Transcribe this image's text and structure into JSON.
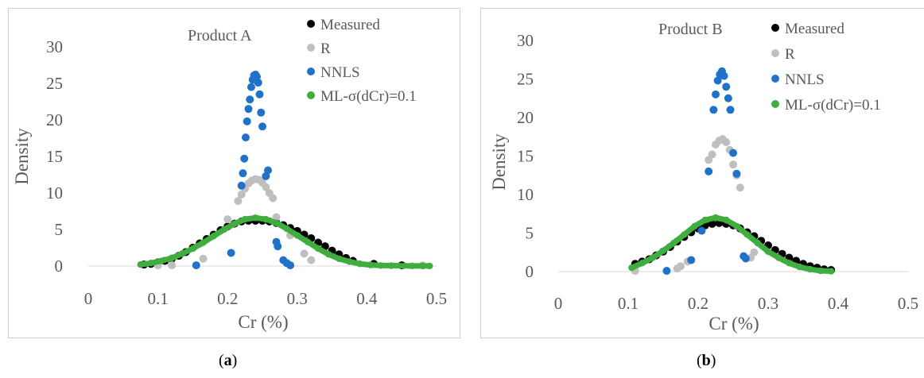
{
  "colors": {
    "measured": "#000000",
    "r": "#bfbfbf",
    "nnls": "#1f72c8",
    "ml": "#3fae3f",
    "axis_text": "#595959",
    "axis_line": "#d9d9d9",
    "panel_border": "#d0d0d0"
  },
  "captions": {
    "a_open": "(",
    "a_letter": "a",
    "a_close": ")",
    "b_open": "(",
    "b_letter": "b",
    "b_close": ")"
  },
  "chart_data": [
    {
      "type": "scatter",
      "title": "Product A",
      "xlabel": "Cr (%)",
      "ylabel": "Density",
      "xlim": [
        0,
        0.5
      ],
      "ylim": [
        0,
        30
      ],
      "x_ticks": [
        "0",
        "0.1",
        "0.2",
        "0.3",
        "0.4",
        "0.5"
      ],
      "y_ticks": [
        "0",
        "5",
        "10",
        "15",
        "20",
        "25",
        "30"
      ],
      "grid": false,
      "legend_position": "top-right",
      "legend": [
        "Measured",
        "R",
        "NNLS",
        "ML-σ(dCr)=0.1"
      ],
      "series": [
        {
          "name": "Measured",
          "color_key": "measured",
          "x": [
            0.08,
            0.09,
            0.1,
            0.11,
            0.12,
            0.13,
            0.14,
            0.15,
            0.16,
            0.17,
            0.18,
            0.19,
            0.2,
            0.21,
            0.22,
            0.23,
            0.24,
            0.25,
            0.26,
            0.27,
            0.28,
            0.29,
            0.3,
            0.31,
            0.32,
            0.33,
            0.34,
            0.35,
            0.36,
            0.37,
            0.38,
            0.41,
            0.45
          ],
          "y": [
            0.2,
            0.3,
            0.5,
            0.7,
            1.0,
            1.4,
            1.9,
            2.5,
            3.1,
            3.7,
            4.3,
            4.9,
            5.4,
            5.8,
            6.1,
            6.2,
            6.2,
            6.2,
            6.1,
            5.9,
            5.6,
            5.2,
            4.8,
            4.3,
            3.8,
            3.2,
            2.7,
            2.1,
            1.6,
            1.1,
            0.7,
            0.3,
            0.1
          ]
        },
        {
          "name": "R",
          "color_key": "r",
          "x": [
            0.1,
            0.12,
            0.165,
            0.2,
            0.215,
            0.22,
            0.225,
            0.23,
            0.235,
            0.24,
            0.245,
            0.25,
            0.255,
            0.26,
            0.265,
            0.27,
            0.29,
            0.31,
            0.32,
            0.48
          ],
          "y": [
            0.1,
            0.1,
            1.0,
            6.4,
            8.9,
            9.8,
            10.6,
            11.3,
            11.7,
            11.9,
            11.8,
            11.4,
            10.8,
            10.0,
            9.3,
            6.7,
            4.2,
            1.7,
            0.8,
            0.1
          ]
        },
        {
          "name": "NNLS",
          "color_key": "nnls",
          "x": [
            0.155,
            0.205,
            0.22,
            0.222,
            0.224,
            0.226,
            0.228,
            0.23,
            0.232,
            0.234,
            0.236,
            0.238,
            0.24,
            0.242,
            0.244,
            0.246,
            0.248,
            0.25,
            0.255,
            0.258,
            0.27,
            0.272,
            0.28,
            0.285,
            0.29
          ],
          "y": [
            0.1,
            1.8,
            11.0,
            12.7,
            14.7,
            17.6,
            19.8,
            21.5,
            22.8,
            24.5,
            25.5,
            26.1,
            26.2,
            25.9,
            25.1,
            23.5,
            21.0,
            19.1,
            12.3,
            13.1,
            3.3,
            2.7,
            0.8,
            0.4,
            0.1
          ]
        },
        {
          "name": "ML-σ(dCr)=0.1",
          "color_key": "ml",
          "x": [
            0.075,
            0.09,
            0.105,
            0.12,
            0.135,
            0.15,
            0.165,
            0.18,
            0.195,
            0.21,
            0.225,
            0.24,
            0.255,
            0.27,
            0.285,
            0.3,
            0.315,
            0.33,
            0.345,
            0.36,
            0.375,
            0.39,
            0.405,
            0.42,
            0.435,
            0.465,
            0.48,
            0.49
          ],
          "y": [
            0.2,
            0.4,
            0.7,
            1.1,
            1.7,
            2.4,
            3.2,
            4.1,
            5.0,
            5.8,
            6.4,
            6.6,
            6.4,
            5.9,
            5.1,
            4.2,
            3.3,
            2.4,
            1.6,
            1.0,
            0.6,
            0.3,
            0.15,
            0.08,
            0.05,
            0.02,
            0.01,
            0.01
          ]
        }
      ]
    },
    {
      "type": "scatter",
      "title": "Product B",
      "xlabel": "Cr (%)",
      "ylabel": "Density",
      "xlim": [
        0,
        0.5
      ],
      "ylim": [
        0,
        30
      ],
      "x_ticks": [
        "0",
        "0.1",
        "0.2",
        "0.3",
        "0.4",
        "0.5"
      ],
      "y_ticks": [
        "0",
        "5",
        "10",
        "15",
        "20",
        "25",
        "30"
      ],
      "grid": false,
      "legend_position": "top-right",
      "legend": [
        "Measured",
        "R",
        "NNLS",
        "ML-σ(dCr)=0.1"
      ],
      "series": [
        {
          "name": "Measured",
          "color_key": "measured",
          "x": [
            0.11,
            0.12,
            0.13,
            0.14,
            0.15,
            0.16,
            0.17,
            0.18,
            0.19,
            0.2,
            0.21,
            0.22,
            0.23,
            0.24,
            0.25,
            0.26,
            0.27,
            0.28,
            0.29,
            0.3,
            0.31,
            0.32,
            0.33,
            0.34,
            0.35,
            0.36,
            0.37,
            0.38,
            0.39
          ],
          "y": [
            1.0,
            1.3,
            1.6,
            2.1,
            2.6,
            3.2,
            3.9,
            4.5,
            5.1,
            5.6,
            6.0,
            6.2,
            6.3,
            6.2,
            6.0,
            5.6,
            5.1,
            4.6,
            4.0,
            3.4,
            2.8,
            2.3,
            1.8,
            1.4,
            1.0,
            0.7,
            0.5,
            0.3,
            0.2
          ]
        },
        {
          "name": "R",
          "color_key": "r",
          "x": [
            0.11,
            0.17,
            0.175,
            0.185,
            0.215,
            0.22,
            0.225,
            0.23,
            0.235,
            0.24,
            0.245,
            0.25,
            0.255,
            0.26,
            0.275,
            0.28
          ],
          "y": [
            0.1,
            0.4,
            0.7,
            1.3,
            14.5,
            15.2,
            16.5,
            17.0,
            17.2,
            16.8,
            15.8,
            13.9,
            12.5,
            10.9,
            1.8,
            2.5
          ]
        },
        {
          "name": "NNLS",
          "color_key": "nnls",
          "x": [
            0.155,
            0.19,
            0.205,
            0.215,
            0.222,
            0.225,
            0.228,
            0.231,
            0.234,
            0.237,
            0.24,
            0.243,
            0.246,
            0.25,
            0.255,
            0.265,
            0.268
          ],
          "y": [
            0.1,
            1.5,
            5.3,
            13.0,
            21.0,
            23.0,
            24.8,
            25.6,
            26.0,
            25.4,
            24.0,
            22.5,
            21.0,
            15.4,
            12.7,
            2.0,
            1.7
          ]
        },
        {
          "name": "ML-σ(dCr)=0.1",
          "color_key": "ml",
          "x": [
            0.105,
            0.12,
            0.135,
            0.15,
            0.165,
            0.18,
            0.195,
            0.21,
            0.225,
            0.24,
            0.255,
            0.27,
            0.285,
            0.3,
            0.315,
            0.33,
            0.345,
            0.36,
            0.375,
            0.39
          ],
          "y": [
            0.5,
            1.1,
            1.8,
            2.7,
            3.7,
            4.8,
            5.9,
            6.7,
            7.0,
            6.7,
            5.9,
            4.8,
            3.7,
            2.6,
            1.8,
            1.1,
            0.6,
            0.3,
            0.1,
            0.05
          ]
        }
      ]
    }
  ]
}
